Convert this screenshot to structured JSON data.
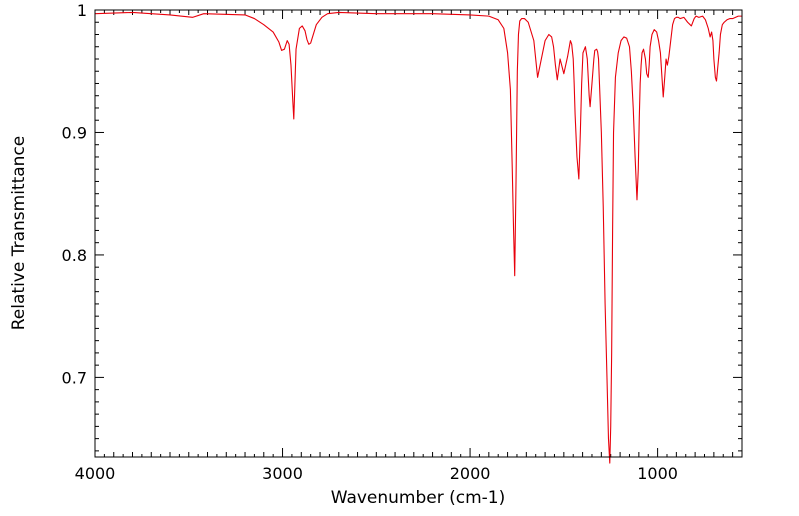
{
  "chart_data": {
    "type": "line",
    "title": "",
    "xlabel": "Wavenumber (cm-1)",
    "ylabel": "Relative Transmittance",
    "xlim": [
      4000,
      550
    ],
    "ylim": [
      0.635,
      1.0
    ],
    "x_reversed": true,
    "grid": false,
    "x_ticks": [
      4000,
      3000,
      2000,
      1000
    ],
    "x_tick_labels": [
      "4000",
      "3000",
      "2000",
      "1000"
    ],
    "y_ticks": [
      1.0,
      0.9,
      0.8,
      0.7
    ],
    "y_tick_labels": [
      "1",
      "0.9",
      "0.8",
      "0.7"
    ],
    "series": [
      {
        "color": "#e8000b",
        "x": [
          4000,
          3800,
          3600,
          3480,
          3420,
          3200,
          3150,
          3100,
          3050,
          3020,
          3005,
          2990,
          2975,
          2965,
          2955,
          2945,
          2940,
          2935,
          2928,
          2910,
          2895,
          2880,
          2870,
          2860,
          2850,
          2840,
          2820,
          2790,
          2760,
          2700,
          2500,
          2200,
          2000,
          1900,
          1850,
          1820,
          1800,
          1785,
          1775,
          1768,
          1762,
          1755,
          1748,
          1742,
          1735,
          1725,
          1710,
          1690,
          1660,
          1650,
          1640,
          1620,
          1600,
          1580,
          1565,
          1555,
          1545,
          1535,
          1520,
          1500,
          1480,
          1465,
          1458,
          1450,
          1445,
          1440,
          1430,
          1420,
          1412,
          1405,
          1398,
          1385,
          1375,
          1370,
          1365,
          1360,
          1350,
          1340,
          1335,
          1325,
          1320,
          1315,
          1310,
          1300,
          1290,
          1280,
          1270,
          1262,
          1255,
          1250,
          1245,
          1240,
          1235,
          1225,
          1210,
          1195,
          1180,
          1165,
          1150,
          1140,
          1130,
          1120,
          1110,
          1103,
          1098,
          1093,
          1088,
          1083,
          1075,
          1065,
          1058,
          1050,
          1045,
          1040,
          1030,
          1018,
          1005,
          995,
          985,
          978,
          970,
          962,
          955,
          948,
          940,
          930,
          920,
          910,
          900,
          890,
          880,
          860,
          840,
          820,
          805,
          800,
          795,
          780,
          760,
          745,
          730,
          720,
          712,
          705,
          700,
          692,
          686,
          680,
          672,
          665,
          655,
          645,
          630,
          615,
          600,
          585,
          570,
          555,
          550
        ],
        "y": [
          0.997,
          0.998,
          0.996,
          0.994,
          0.997,
          0.996,
          0.993,
          0.988,
          0.982,
          0.974,
          0.967,
          0.968,
          0.975,
          0.972,
          0.955,
          0.925,
          0.911,
          0.935,
          0.968,
          0.985,
          0.987,
          0.983,
          0.976,
          0.972,
          0.973,
          0.978,
          0.988,
          0.994,
          0.997,
          0.998,
          0.997,
          0.997,
          0.996,
          0.995,
          0.992,
          0.985,
          0.965,
          0.935,
          0.87,
          0.82,
          0.783,
          0.86,
          0.95,
          0.98,
          0.991,
          0.993,
          0.993,
          0.99,
          0.975,
          0.96,
          0.945,
          0.96,
          0.975,
          0.98,
          0.978,
          0.97,
          0.955,
          0.943,
          0.96,
          0.948,
          0.962,
          0.975,
          0.972,
          0.96,
          0.94,
          0.915,
          0.88,
          0.862,
          0.9,
          0.94,
          0.965,
          0.97,
          0.96,
          0.945,
          0.93,
          0.921,
          0.94,
          0.96,
          0.967,
          0.968,
          0.966,
          0.96,
          0.94,
          0.9,
          0.84,
          0.76,
          0.7,
          0.65,
          0.63,
          0.66,
          0.72,
          0.82,
          0.9,
          0.945,
          0.965,
          0.975,
          0.978,
          0.977,
          0.97,
          0.95,
          0.92,
          0.88,
          0.845,
          0.87,
          0.91,
          0.94,
          0.955,
          0.965,
          0.968,
          0.96,
          0.948,
          0.945,
          0.955,
          0.97,
          0.98,
          0.984,
          0.982,
          0.975,
          0.965,
          0.948,
          0.929,
          0.945,
          0.96,
          0.955,
          0.962,
          0.975,
          0.988,
          0.993,
          0.994,
          0.994,
          0.993,
          0.994,
          0.99,
          0.987,
          0.993,
          0.994,
          0.995,
          0.994,
          0.995,
          0.992,
          0.985,
          0.978,
          0.982,
          0.975,
          0.96,
          0.945,
          0.942,
          0.952,
          0.965,
          0.98,
          0.988,
          0.99,
          0.992,
          0.993,
          0.993,
          0.994,
          0.995,
          0.995,
          0.995
        ]
      }
    ]
  }
}
